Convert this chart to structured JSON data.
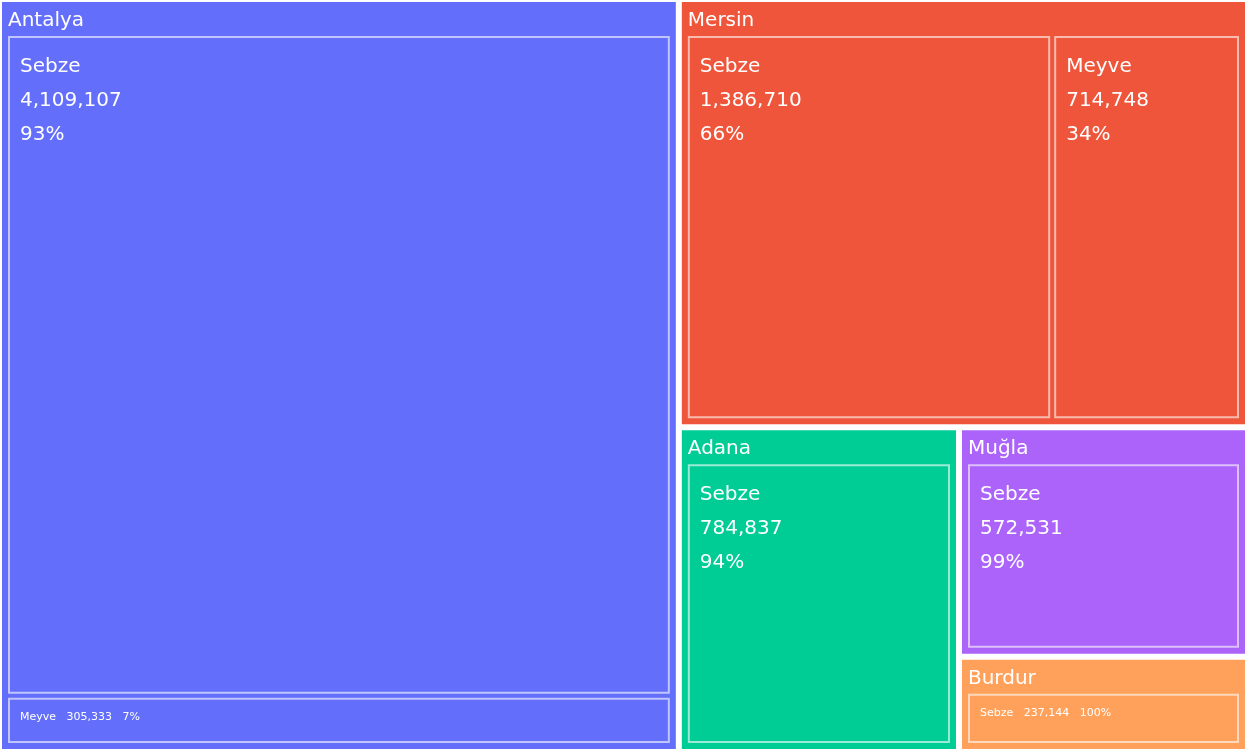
{
  "chart_data": {
    "type": "other",
    "categories": [
      "Sebze",
      "Meyve"
    ],
    "series": [
      {
        "name": "Antalya",
        "color": "#636efa",
        "values": [
          4109107,
          305333
        ],
        "value_labels": [
          "4,109,107",
          "305,333"
        ]
      },
      {
        "name": "Mersin",
        "color": "#ef553b",
        "values": [
          1386710,
          714748
        ],
        "value_labels": [
          "1,386,710",
          "714,748"
        ]
      },
      {
        "name": "Adana",
        "color": "#00cc96",
        "values": [
          784837,
          null
        ],
        "value_labels": [
          "784,837",
          null
        ]
      },
      {
        "name": "Muğla",
        "color": "#ab63fa",
        "values": [
          572531,
          null
        ],
        "value_labels": [
          "572,531",
          null
        ]
      },
      {
        "name": "Burdur",
        "color": "#ffa15a",
        "values": [
          237144,
          null
        ],
        "value_labels": [
          "237,144",
          null
        ]
      }
    ],
    "annotations": [
      "93%",
      "7%",
      "66%",
      "34%",
      "94%",
      "99%",
      "100%"
    ]
  }
}
